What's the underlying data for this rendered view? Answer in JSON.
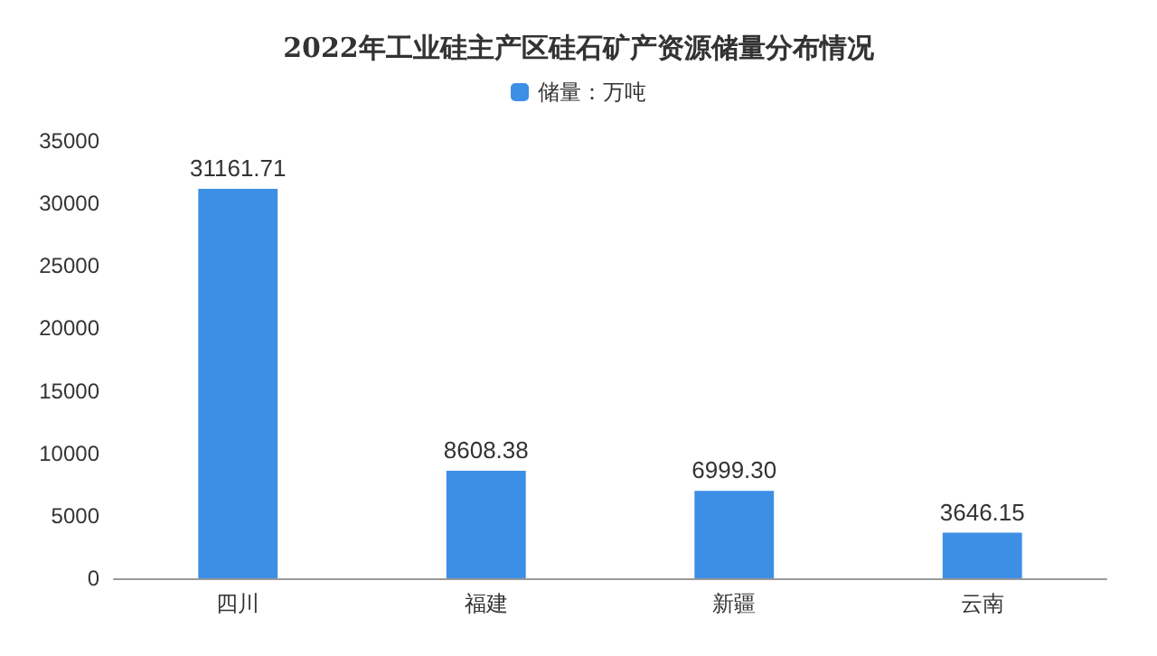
{
  "chart_data": {
    "type": "bar",
    "title": "2022年工业硅主产区硅石矿产资源储量分布情况",
    "categories": [
      "四川",
      "福建",
      "新疆",
      "云南"
    ],
    "series": [
      {
        "name": "储量：万吨",
        "color": "#3d8fe6",
        "values": [
          31161.71,
          8608.38,
          6999.3,
          3646.15
        ]
      }
    ],
    "value_labels": [
      "31161.71",
      "8608.38",
      "6999.30",
      "3646.15"
    ],
    "ylim": [
      0,
      35000
    ],
    "yticks": [
      0,
      5000,
      10000,
      15000,
      20000,
      25000,
      30000,
      35000
    ],
    "grid": false,
    "legend": "top"
  }
}
